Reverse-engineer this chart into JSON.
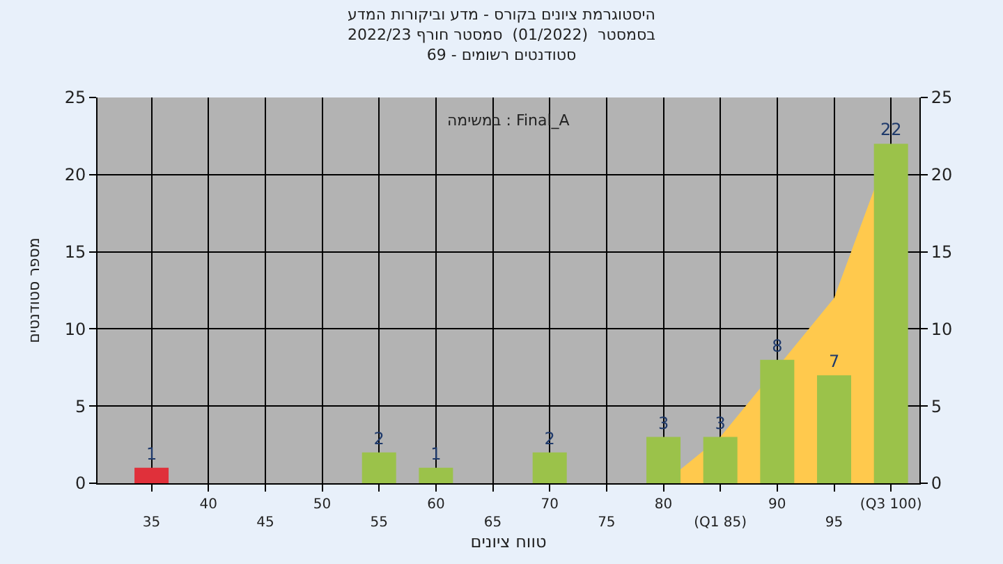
{
  "chart_data": {
    "type": "bar",
    "title": "היסטוגרמת ציונים בקורס - מדע וביקורות המדע\nבסמסטר  (01/2022)  סמסטר חורף 2022/23\nסטודנטים רשומים - 69",
    "xlabel": "טווח ציונים",
    "ylabel": "מספר סטודנטים",
    "annotations": [
      "במשימה : Final_A"
    ],
    "categories": [
      "35",
      "40",
      "45",
      "50",
      "55",
      "60",
      "65",
      "70",
      "75",
      "80",
      "(Q1 85)",
      "90",
      "95",
      "(Q3 100)"
    ],
    "series": [
      {
        "type": "area",
        "color": "#ffc94d",
        "values": [
          null,
          null,
          null,
          null,
          null,
          null,
          null,
          null,
          null,
          0,
          3,
          null,
          12,
          22
        ]
      },
      {
        "type": "bar",
        "axis": "y2",
        "colors": [
          "#e0303a",
          "#9bc24a",
          "#9bc24a",
          "#9bc24a",
          "#9bc24a",
          "#9bc24a",
          "#9bc24a",
          "#9bc24a",
          "#9bc24a",
          "#9bc24a",
          "#9bc24a",
          "#9bc24a",
          "#9bc24a",
          "#9bc24a"
        ],
        "values": [
          1,
          0,
          0,
          0,
          2,
          1,
          0,
          2,
          0,
          3,
          3,
          8,
          7,
          22
        ],
        "value_labels": [
          "1",
          null,
          null,
          null,
          "2",
          "1",
          null,
          "2",
          null,
          "3",
          "3",
          "8",
          "7",
          "22"
        ]
      }
    ],
    "ylim": [
      0,
      25
    ],
    "yticks": [
      0,
      5,
      10,
      15,
      20,
      25
    ],
    "y2lim": [
      0,
      25
    ],
    "y2ticks": [
      0,
      5,
      10,
      15,
      20,
      25
    ],
    "grid": true
  }
}
